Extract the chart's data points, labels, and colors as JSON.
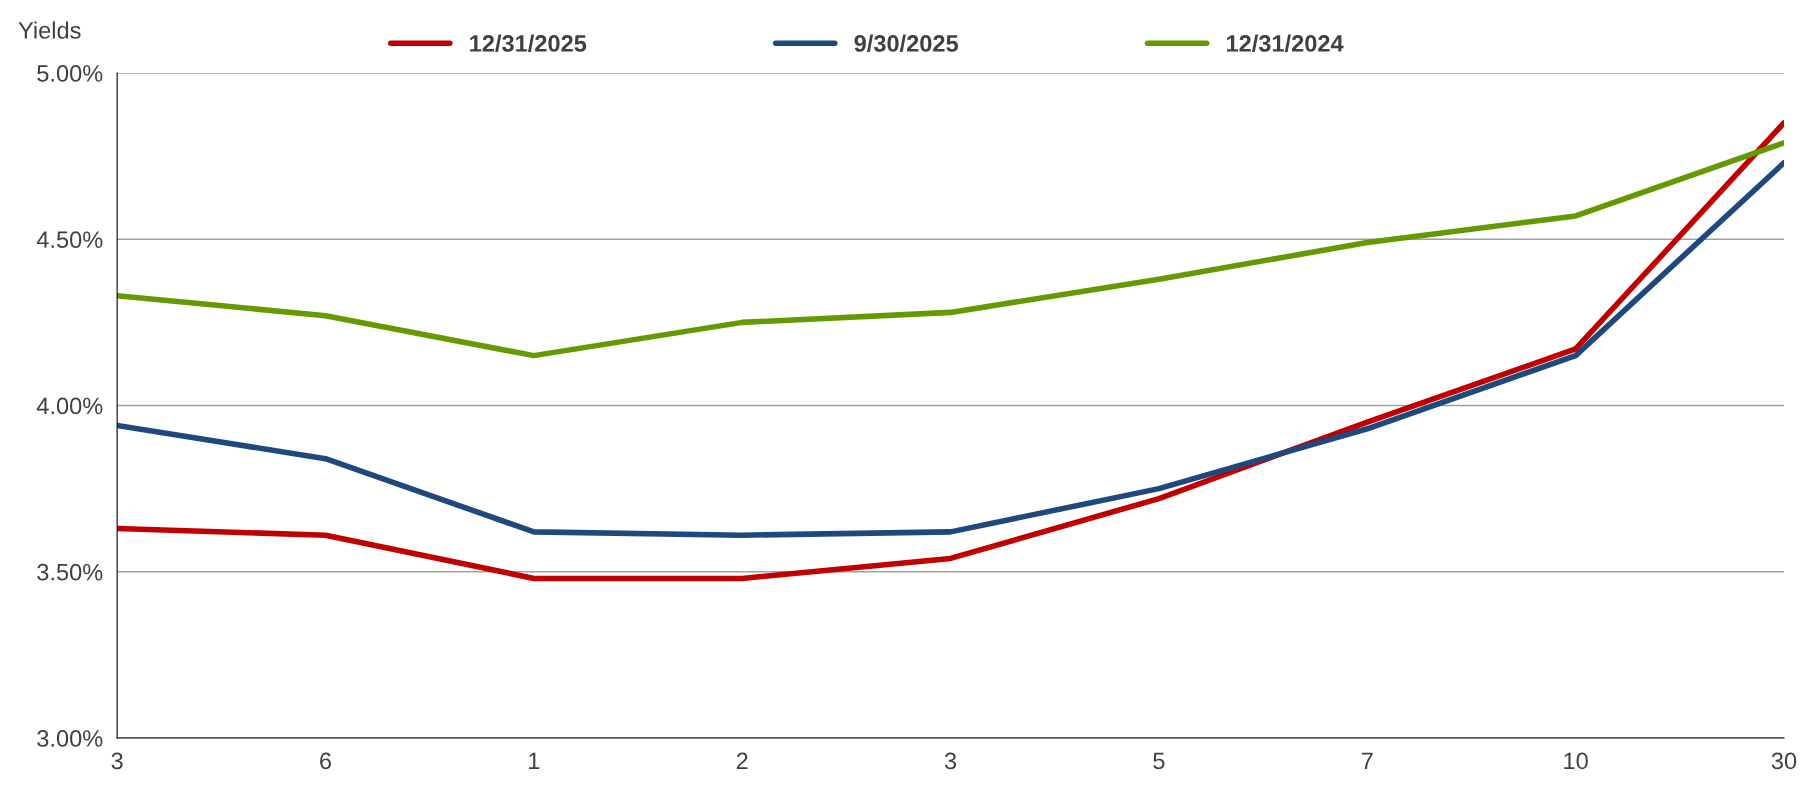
{
  "chart_data": {
    "type": "line",
    "ylabel": "Yields",
    "categories": [
      "3",
      "6",
      "1",
      "2",
      "3",
      "5",
      "7",
      "10",
      "30"
    ],
    "series": [
      {
        "name": "12/31/2025",
        "color": "#c00000",
        "values": [
          3.63,
          3.61,
          3.48,
          3.48,
          3.54,
          3.72,
          3.95,
          4.17,
          4.85
        ]
      },
      {
        "name": "9/30/2025",
        "color": "#1f497d",
        "values": [
          3.94,
          3.84,
          3.62,
          3.61,
          3.62,
          3.75,
          3.93,
          4.15,
          4.73
        ]
      },
      {
        "name": "12/31/2024",
        "color": "#669900",
        "values": [
          4.33,
          4.27,
          4.15,
          4.25,
          4.28,
          4.38,
          4.49,
          4.57,
          4.79
        ]
      }
    ],
    "ylim": [
      3.0,
      5.0
    ],
    "yticks": [
      {
        "value": 3.0,
        "label": "3.00%"
      },
      {
        "value": 3.5,
        "label": "3.50%"
      },
      {
        "value": 4.0,
        "label": "4.00%"
      },
      {
        "value": 4.5,
        "label": "4.50%"
      },
      {
        "value": 5.0,
        "label": "5.00%"
      }
    ],
    "grid": "y",
    "legend": "top",
    "marker": "none",
    "line_style": "solid"
  }
}
